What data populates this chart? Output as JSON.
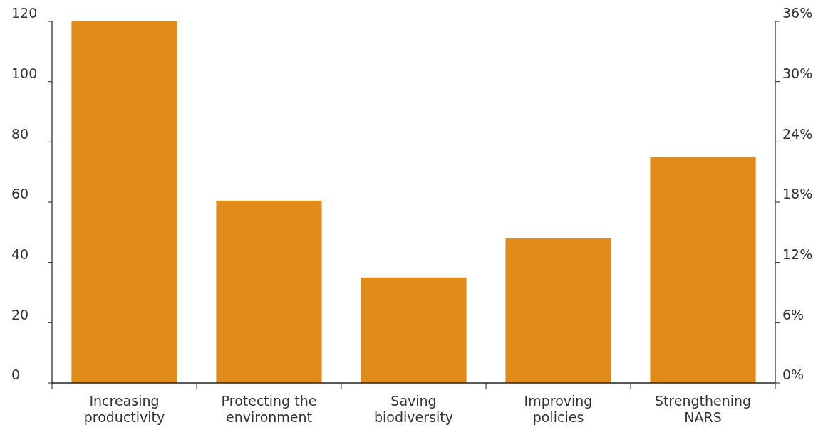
{
  "chart_data": {
    "type": "bar",
    "categories": [
      "Increasing productivity",
      "Protecting the environment",
      "Saving biodiversity",
      "Improving policies",
      "Strengthening NARS"
    ],
    "values": [
      120,
      60.5,
      35,
      48,
      75
    ],
    "color": "#e18c1a",
    "ylim": [
      0,
      120
    ],
    "yticks": [
      0,
      20,
      40,
      60,
      80,
      100,
      120
    ],
    "y2lim": [
      0,
      36
    ],
    "y2ticks": [
      {
        "value": 0,
        "label": "0%"
      },
      {
        "value": 6,
        "label": "6%"
      },
      {
        "value": 12,
        "label": "12%"
      },
      {
        "value": 18,
        "label": "18%"
      },
      {
        "value": 24,
        "label": "24%"
      },
      {
        "value": 30,
        "label": "30%"
      },
      {
        "value": 36,
        "label": "36%"
      }
    ]
  }
}
